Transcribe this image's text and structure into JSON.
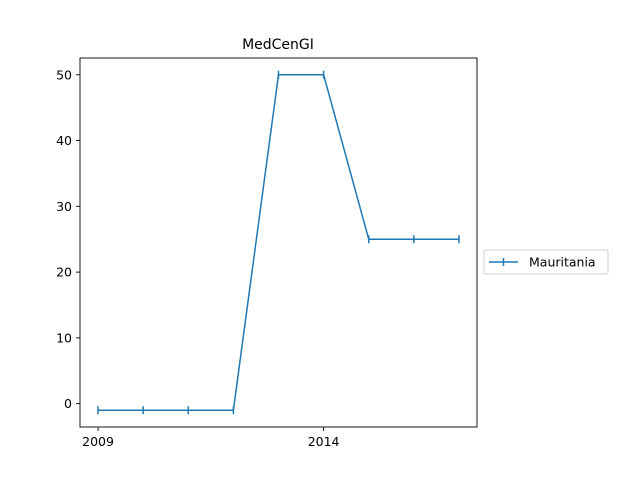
{
  "chart_data": {
    "type": "line",
    "title": "MedCenGI",
    "xlabel": "",
    "ylabel": "",
    "x": [
      2009,
      2010,
      2011,
      2012,
      2013,
      2014,
      2015,
      2016,
      2017
    ],
    "series": [
      {
        "name": "Mauritania",
        "values": [
          -1,
          -1,
          -1,
          -1,
          50,
          50,
          25,
          25,
          25
        ],
        "color": "#1f77b4",
        "marker": "vline"
      }
    ],
    "xticks": [
      2009,
      2014
    ],
    "yticks": [
      0,
      10,
      20,
      30,
      40,
      50
    ],
    "xlim": [
      2008.6,
      2017.4
    ],
    "ylim": [
      -3.55,
      52.55
    ],
    "grid": false,
    "legend": "outside-right"
  }
}
